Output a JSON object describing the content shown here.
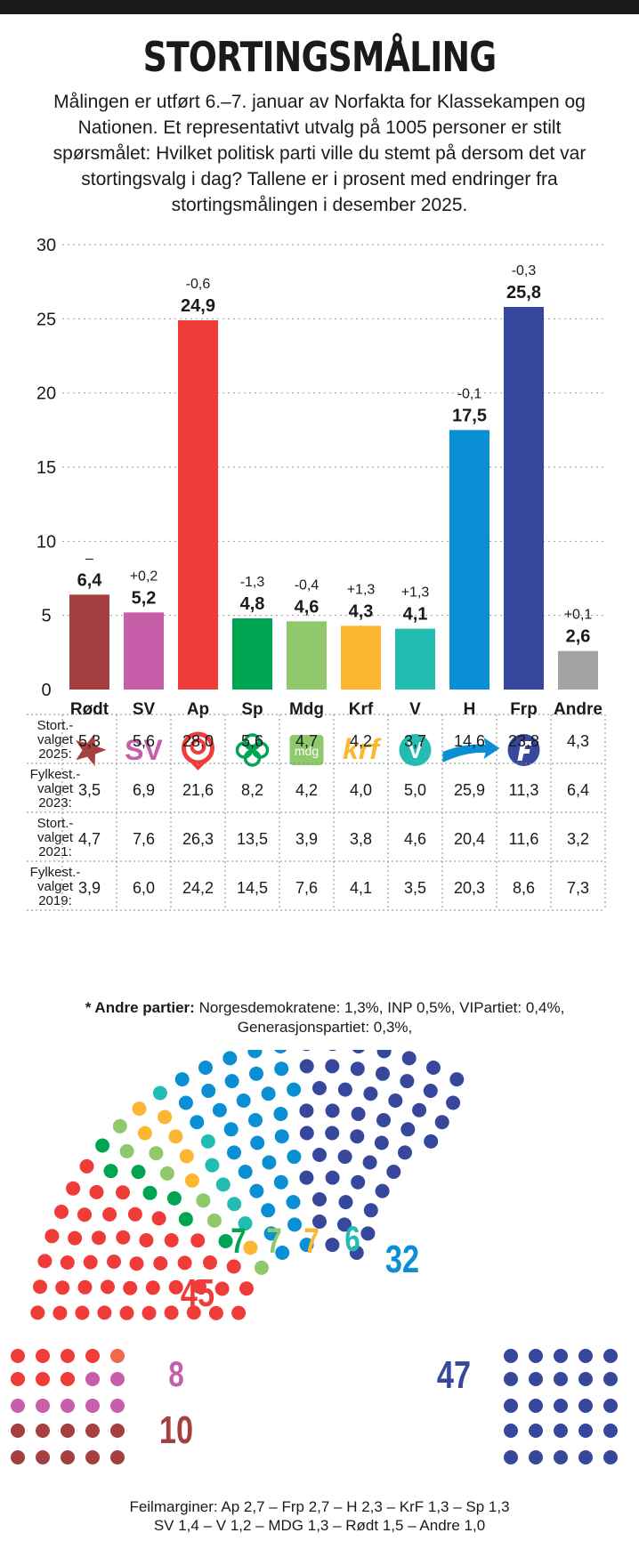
{
  "header": {
    "title": "STORTINGSMÅLING",
    "intro": "Målingen er utført 6.–7. januar av Norfakta for Klassekampen og Nationen. Et representativt utvalg på 1005 personer er stilt spørsmålet: Hvilket politisk parti ville du stemt på dersom det var stortingsvalg i dag? Tallene er i prosent med endringer fra stortingsmålingen i desember 2025."
  },
  "chart_data": {
    "type": "bar",
    "categories": [
      "Rødt",
      "SV",
      "Ap",
      "Sp",
      "Mdg",
      "Krf",
      "V",
      "H",
      "Frp",
      "Andre"
    ],
    "values": [
      6.4,
      5.2,
      24.9,
      4.8,
      4.6,
      4.3,
      4.1,
      17.5,
      25.8,
      2.6
    ],
    "value_labels": [
      "6,4",
      "5,2",
      "24,9",
      "4,8",
      "4,6",
      "4,3",
      "4,1",
      "17,5",
      "25,8",
      "2,6"
    ],
    "changes": [
      "–",
      "+0,2",
      "-0,6",
      "-1,3",
      "-0,4",
      "+1,3",
      "+1,3",
      "-0,1",
      "-0,3",
      "+0,1"
    ],
    "colors": [
      "#a63f3f",
      "#c65ea9",
      "#f03c38",
      "#00a551",
      "#8fc96b",
      "#fbb731",
      "#22bdb0",
      "#0a8ed4",
      "#37489c",
      "#a3a3a3"
    ],
    "ylim": [
      0,
      30
    ],
    "yticks": [
      0,
      5,
      10,
      15,
      20,
      25,
      30
    ],
    "grid": true,
    "icons": [
      "rodt-star-icon",
      "sv-logo-icon",
      "ap-rose-icon",
      "sp-clover-icon",
      "mdg-logo-icon",
      "krf-logo-icon",
      "v-logo-icon",
      "h-arrow-icon",
      "frp-logo-icon",
      ""
    ]
  },
  "logos": {
    "sv": "SV",
    "mdg": "mdg",
    "krf": "krf",
    "v": "V"
  },
  "history": {
    "rows": [
      {
        "label": [
          "Stort.-",
          "valget",
          "2025:"
        ],
        "values": [
          "5,3",
          "5,6",
          "28,0",
          "5,6",
          "4,7",
          "4,2",
          "3,7",
          "14,6",
          "23,8",
          "4,3"
        ]
      },
      {
        "label": [
          "Fylkest.-",
          "valget",
          "2023:"
        ],
        "values": [
          "3,5",
          "6,9",
          "21,6",
          "8,2",
          "4,2",
          "4,0",
          "5,0",
          "25,9",
          "11,3",
          "6,4"
        ]
      },
      {
        "label": [
          "Stort.-",
          "valget",
          "2021:"
        ],
        "values": [
          "4,7",
          "7,6",
          "26,3",
          "13,5",
          "3,9",
          "3,8",
          "4,6",
          "20,4",
          "11,6",
          "3,2"
        ]
      },
      {
        "label": [
          "Fylkest.-",
          "valget",
          "2019:"
        ],
        "values": [
          "3,9",
          "6,0",
          "24,2",
          "14,5",
          "7,6",
          "4,1",
          "3,5",
          "20,3",
          "8,6",
          "7,3"
        ]
      }
    ]
  },
  "footnote": {
    "label": "* Andre partier:",
    "text": "Norgesdemokratene: 1,3%, INP 0,5%, VIPartiet: 0,4%, Generasjonspartiet: 0,3%,"
  },
  "parliament": {
    "seats": [
      {
        "party": "Ap",
        "seats": "45",
        "color": "#f03c38"
      },
      {
        "party": "Sp",
        "seats": "7",
        "color": "#00a551"
      },
      {
        "party": "Mdg",
        "seats": "7",
        "color": "#8fc96b"
      },
      {
        "party": "Krf",
        "seats": "7",
        "color": "#fbb731"
      },
      {
        "party": "V",
        "seats": "6",
        "color": "#22bdb0"
      },
      {
        "party": "H",
        "seats": "32",
        "color": "#0a8ed4"
      },
      {
        "party": "Frp",
        "seats": "47",
        "color": "#37489c"
      },
      {
        "party": "SV",
        "seats": "8",
        "color": "#c65ea9"
      },
      {
        "party": "Rødt",
        "seats": "10",
        "color": "#a63f3f"
      }
    ],
    "extra_color": "#f06a4a"
  },
  "margins": {
    "line1": "Feilmarginer: Ap 2,7 – Frp 2,7 – H 2,3 – KrF 1,3 – Sp 1,3",
    "line2": "SV 1,4 – V 1,2 – MDG 1,3 – Rødt 1,5 – Andre 1,0"
  }
}
